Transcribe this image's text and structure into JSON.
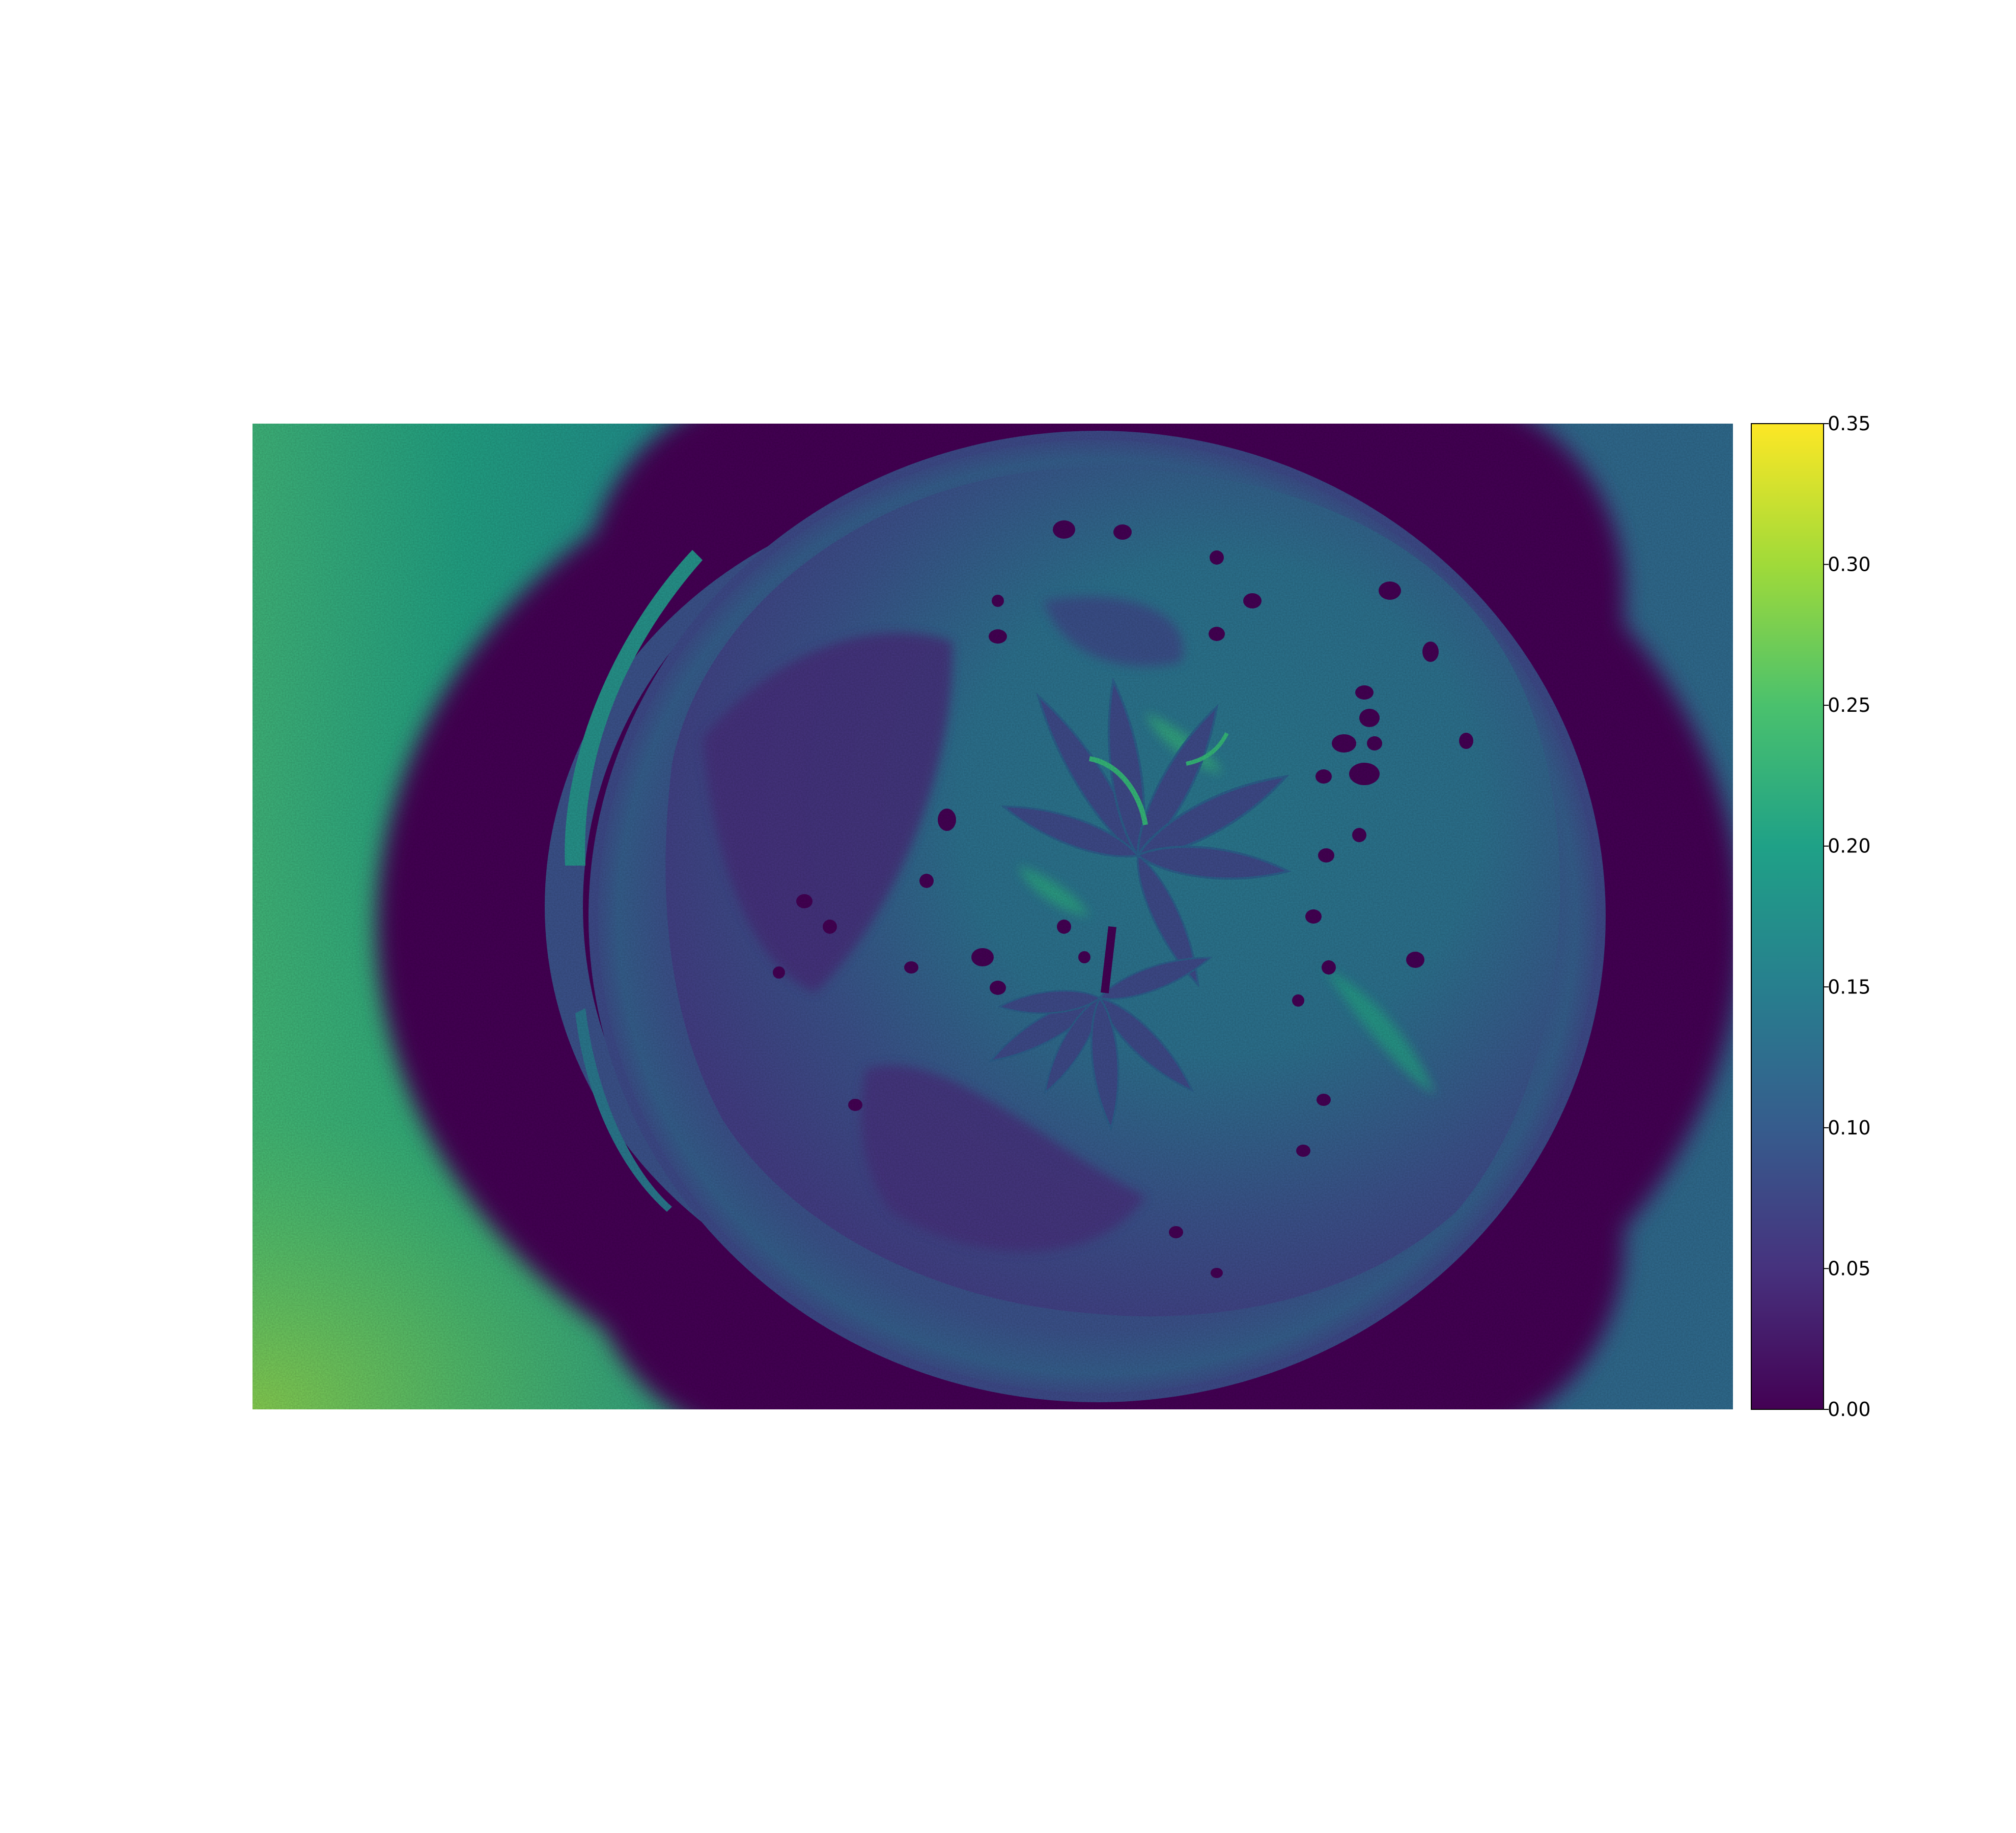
{
  "image": {
    "subject": "false-color overhead image of a round pot with soil and two cannabis seedlings",
    "colormap": "viridis"
  },
  "colorbar": {
    "vmin": 0.0,
    "vmax": 0.35,
    "ticks": [
      "0.00",
      "0.05",
      "0.10",
      "0.15",
      "0.20",
      "0.25",
      "0.30",
      "0.35"
    ],
    "colors": [
      "#440154",
      "#46327e",
      "#365c8d",
      "#277f8e",
      "#1fa187",
      "#4ac16d",
      "#a0da39",
      "#fde725"
    ]
  }
}
